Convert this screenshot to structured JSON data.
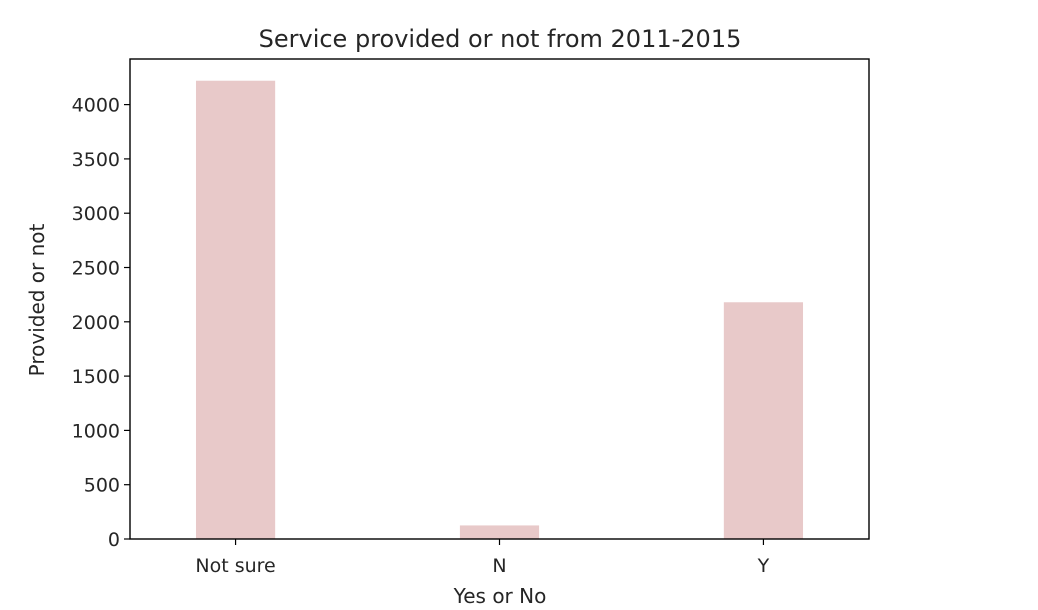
{
  "chart_data": {
    "type": "bar",
    "title": "Service provided or not from 2011-2015",
    "xlabel": "Yes or No",
    "ylabel": "Provided or not",
    "categories": [
      "Not sure",
      "N",
      "Y"
    ],
    "values": [
      4220,
      125,
      2180
    ],
    "ylim": [
      0,
      4420
    ],
    "yticks": [
      0,
      500,
      1000,
      1500,
      2000,
      2500,
      3000,
      3500,
      4000
    ],
    "grid": false,
    "bar_color": "#e8c9c9"
  }
}
